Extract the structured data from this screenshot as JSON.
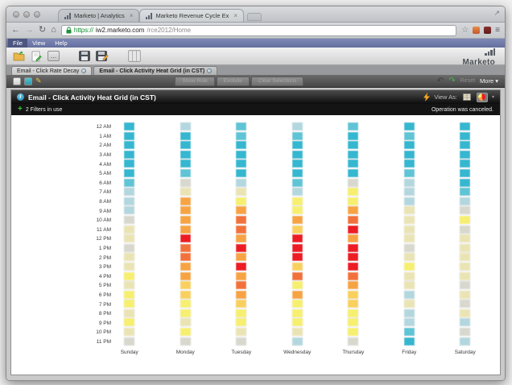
{
  "browser": {
    "tabs": [
      {
        "title": "Marketo | Analytics"
      },
      {
        "title": "Marketo Revenue Cycle Ex"
      }
    ],
    "address": {
      "scheme": "https://",
      "host": "iw2.marketo.com",
      "path": "/rce2012/Home"
    }
  },
  "icons": {
    "back": "←",
    "forward": "→",
    "reload": "↻",
    "home": "⌂",
    "star": "☆",
    "menu": "≡",
    "tab_close": "×",
    "expand": "↗",
    "ellipsis": "…",
    "pencil": "✎",
    "undo": "↶",
    "redo": "↷",
    "plus": "+",
    "caret_down": "▾",
    "info": "i"
  },
  "menubar": {
    "items": [
      "File",
      "View",
      "Help"
    ]
  },
  "app_toolbar": {
    "logo_text": "Marketo"
  },
  "doc_tabs": [
    {
      "label": "Email - Click Rate Decay"
    },
    {
      "label": "Email - Click Activity Heat Grid (in CST)"
    }
  ],
  "report_toolbar": {
    "buttons": [
      "Show Rule",
      "Exclude",
      "Clear Selections"
    ],
    "reset_label": "Reset",
    "more_label": "More"
  },
  "panel": {
    "title": "Email - Click Activity Heat Grid (in CST)",
    "view_as_label": "View As:"
  },
  "filter_bar": {
    "filters_label": "2 Filters in use",
    "status_message": "Operation was canceled."
  },
  "colors": {
    "menubar_blue": "#6B76A6",
    "redo_green": "#46B84F",
    "status_bar_black": "#141414"
  },
  "chart_data": {
    "type": "heatmap",
    "title": "Email - Click Activity Heat Grid (in CST)",
    "x_categories": [
      "Sunday",
      "Monday",
      "Tuesday",
      "Wednesday",
      "Thursday",
      "Friday",
      "Saturday"
    ],
    "y_categories": [
      "12 AM",
      "1 AM",
      "2 AM",
      "3 AM",
      "4 AM",
      "5 AM",
      "6 AM",
      "7 AM",
      "8 AM",
      "9 AM",
      "10 AM",
      "11 AM",
      "12 PM",
      "1 PM",
      "2 PM",
      "3 PM",
      "4 PM",
      "5 PM",
      "6 PM",
      "7 PM",
      "8 PM",
      "9 PM",
      "10 PM",
      "11 PM"
    ],
    "palette": {
      "c3": "#35B7D0",
      "c2": "#5FC4D6",
      "c1": "#B3D7DE",
      "n0": "#D9D8CE",
      "w1": "#EAE4B4",
      "w2": "#F6EF6F",
      "w3": "#F9D05E",
      "w4": "#F7A343",
      "w5": "#F2713B",
      "w6": "#ED1C24"
    },
    "intensity_scale_low_to_high": [
      "c3",
      "c2",
      "c1",
      "n0",
      "w1",
      "w2",
      "w3",
      "w4",
      "w5",
      "w6"
    ],
    "grid_by_day": [
      [
        "c3",
        "c3",
        "c3",
        "c3",
        "c3",
        "c3",
        "c2",
        "c1",
        "c1",
        "c1",
        "n0",
        "w1",
        "w1",
        "n0",
        "w1",
        "w1",
        "w2",
        "w1",
        "w2",
        "w2",
        "w1",
        "w2",
        "w1",
        "n0"
      ],
      [
        "c1",
        "c3",
        "c3",
        "c3",
        "c3",
        "c2",
        "n0",
        "w1",
        "w4",
        "w4",
        "w4",
        "w4",
        "w6",
        "w5",
        "w5",
        "w4",
        "w4",
        "w3",
        "w3",
        "w2",
        "w2",
        "w1",
        "w2",
        "n0"
      ],
      [
        "c2",
        "c2",
        "c3",
        "c3",
        "c3",
        "c3",
        "c1",
        "w1",
        "w2",
        "w4",
        "w5",
        "w5",
        "w4",
        "w6",
        "w4",
        "w6",
        "w4",
        "w5",
        "w4",
        "w3",
        "w2",
        "w2",
        "w1",
        "n0"
      ],
      [
        "c1",
        "c2",
        "c3",
        "c3",
        "c3",
        "c3",
        "c2",
        "c1",
        "w2",
        "w2",
        "w4",
        "w3",
        "w6",
        "w6",
        "w6",
        "w3",
        "w5",
        "w2",
        "w4",
        "w2",
        "w2",
        "w2",
        "w1",
        "c1"
      ],
      [
        "c2",
        "c3",
        "c3",
        "c3",
        "c3",
        "c3",
        "n0",
        "w2",
        "w2",
        "w4",
        "w5",
        "w6",
        "w4",
        "w6",
        "w6",
        "w6",
        "w5",
        "w4",
        "w3",
        "w3",
        "w2",
        "w2",
        "w2",
        "n0"
      ],
      [
        "c3",
        "c2",
        "c3",
        "c3",
        "c3",
        "c2",
        "c1",
        "c1",
        "c1",
        "w1",
        "w1",
        "w1",
        "w1",
        "n0",
        "w1",
        "w2",
        "w1",
        "w1",
        "c1",
        "w1",
        "c1",
        "c1",
        "c2",
        "c3"
      ],
      [
        "c3",
        "c3",
        "c3",
        "c3",
        "c3",
        "c3",
        "c3",
        "c2",
        "c1",
        "n0",
        "w2",
        "n0",
        "w1",
        "w1",
        "w1",
        "w1",
        "w1",
        "n0",
        "w1",
        "n0",
        "w1",
        "c1",
        "n0",
        "c1"
      ]
    ]
  }
}
